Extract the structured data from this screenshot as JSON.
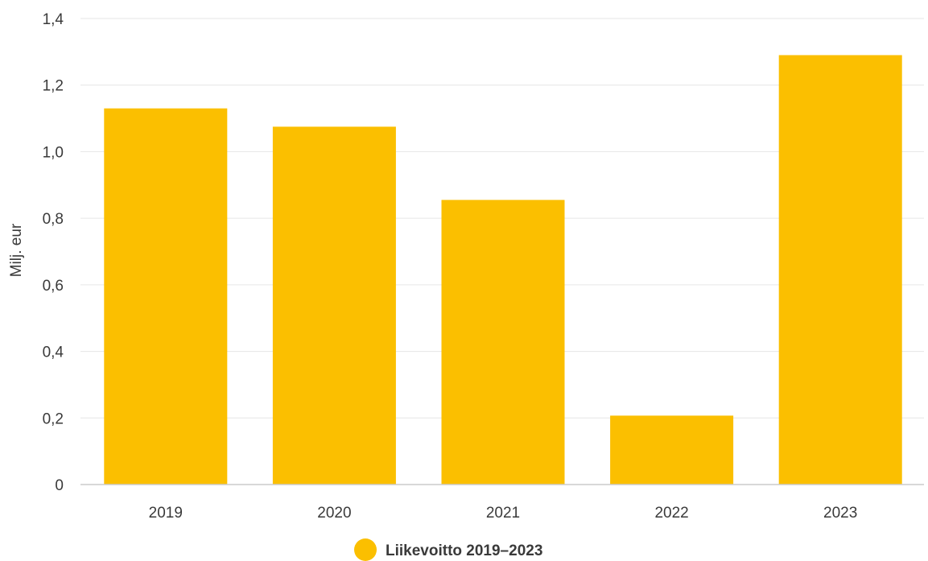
{
  "chart_data": {
    "type": "bar",
    "categories": [
      "2019",
      "2020",
      "2021",
      "2022",
      "2023"
    ],
    "series": [
      {
        "name": "Liikevoitto 2019–2023",
        "values": [
          1.13,
          1.075,
          0.855,
          0.207,
          1.29
        ],
        "color": "#FBBF00"
      }
    ],
    "ylabel": "Milj. eur",
    "xlabel": "",
    "ylim": [
      0,
      1.4
    ],
    "yticks": [
      0,
      0.2,
      0.4,
      0.6,
      0.8,
      1.0,
      1.2,
      1.4
    ],
    "ytick_labels": [
      "0",
      "0,2",
      "0,4",
      "0,6",
      "0,8",
      "1,0",
      "1,2",
      "1,4"
    ],
    "grid": true,
    "legend_position": "bottom-center"
  }
}
